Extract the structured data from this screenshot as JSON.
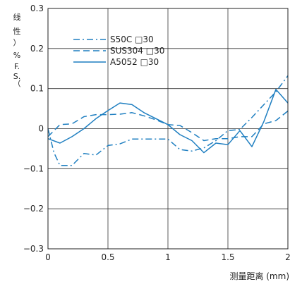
{
  "chart_data": {
    "type": "line",
    "ylabel": "线性（%F.S.）",
    "ylabel_glyphs": [
      "线",
      "性",
      "）",
      "%",
      "F.",
      "S.",
      "（"
    ],
    "xlabel": "测量距离 (mm)",
    "xlim": [
      0,
      2
    ],
    "ylim": [
      -0.3,
      0.3
    ],
    "x_ticks": [
      {
        "value": 0,
        "label": "0"
      },
      {
        "value": 0.5,
        "label": "0.5"
      },
      {
        "value": 1,
        "label": "1"
      },
      {
        "value": 1.5,
        "label": "1.5"
      },
      {
        "value": 2,
        "label": "2"
      }
    ],
    "y_ticks": [
      {
        "value": 0.3,
        "label": "0.3"
      },
      {
        "value": 0.2,
        "label": "0.2"
      },
      {
        "value": 0.1,
        "label": "0.1"
      },
      {
        "value": 0,
        "label": "0"
      },
      {
        "value": -0.1,
        "label": "−0.1"
      },
      {
        "value": -0.2,
        "label": "−0.2"
      },
      {
        "value": -0.3,
        "label": "−0.3"
      }
    ],
    "grid": true,
    "legend_position": "top-left",
    "line_color": "#1f7fc1",
    "series": [
      {
        "name": "S50C □30",
        "dash": "dash-dot",
        "x": [
          0,
          0.05,
          0.1,
          0.2,
          0.3,
          0.4,
          0.5,
          0.6,
          0.7,
          0.8,
          0.9,
          1.0,
          1.1,
          1.2,
          1.3,
          1.4,
          1.5,
          1.6,
          1.7,
          1.8,
          1.9,
          2.0
        ],
        "y": [
          0,
          -0.06,
          -0.092,
          -0.092,
          -0.062,
          -0.066,
          -0.042,
          -0.038,
          -0.026,
          -0.026,
          -0.026,
          -0.026,
          -0.052,
          -0.056,
          -0.048,
          -0.03,
          -0.005,
          -0.002,
          0.028,
          0.06,
          0.092,
          0.132
        ]
      },
      {
        "name": "SUS304 □30",
        "dash": "dash",
        "x": [
          0,
          0.1,
          0.2,
          0.3,
          0.4,
          0.5,
          0.6,
          0.7,
          0.8,
          0.9,
          1.0,
          1.1,
          1.2,
          1.3,
          1.4,
          1.5,
          1.6,
          1.7,
          1.8,
          1.9,
          2.0
        ],
        "y": [
          -0.02,
          0.01,
          0.012,
          0.03,
          0.035,
          0.035,
          0.036,
          0.04,
          0.032,
          0.022,
          0.01,
          0.008,
          -0.01,
          -0.03,
          -0.025,
          -0.025,
          -0.02,
          -0.02,
          0.012,
          0.02,
          0.044
        ]
      },
      {
        "name": "A5052 □30",
        "dash": "solid",
        "x": [
          0,
          0.1,
          0.2,
          0.3,
          0.4,
          0.5,
          0.6,
          0.7,
          0.8,
          0.9,
          1.0,
          1.1,
          1.2,
          1.3,
          1.4,
          1.5,
          1.6,
          1.7,
          1.8,
          1.9,
          2.0
        ],
        "y": [
          -0.025,
          -0.036,
          -0.02,
          0.0,
          0.025,
          0.045,
          0.064,
          0.06,
          0.04,
          0.025,
          0.01,
          -0.015,
          -0.03,
          -0.06,
          -0.036,
          -0.04,
          -0.005,
          -0.045,
          0.018,
          0.098,
          0.064
        ]
      }
    ]
  }
}
